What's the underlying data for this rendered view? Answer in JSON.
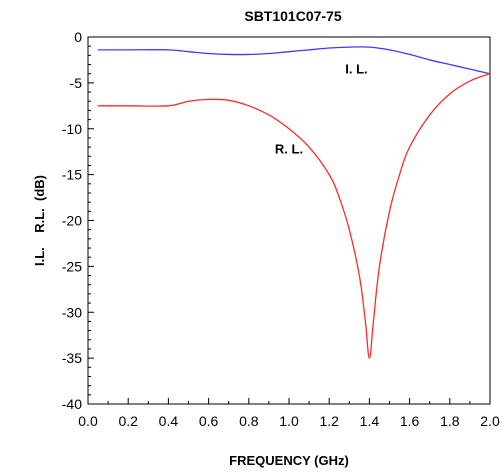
{
  "chart_data": {
    "type": "line",
    "title": "SBT101C07-75",
    "xlabel": "FREQUENCY (GHz)",
    "ylabel": "I.L.    R.L.  (dB)",
    "xlim": [
      0.0,
      2.0
    ],
    "ylim": [
      -40,
      0
    ],
    "x_ticks": [
      "0.0",
      "0.2",
      "0.4",
      "0.6",
      "0.8",
      "1.0",
      "1.2",
      "1.4",
      "1.6",
      "1.8",
      "2.0"
    ],
    "y_ticks": [
      "0",
      "-5",
      "-10",
      "-15",
      "-20",
      "-25",
      "-30",
      "-35",
      "-40"
    ],
    "grid": false,
    "annotations": [
      {
        "text": "I. L.",
        "x": 1.28,
        "y": -4.0
      },
      {
        "text": "R. L.",
        "x": 0.93,
        "y": -12.7
      }
    ],
    "series": [
      {
        "name": "I. L.",
        "color": "#3b3bff",
        "x": [
          0.05,
          0.2,
          0.4,
          0.5,
          0.6,
          0.7,
          0.8,
          0.9,
          1.0,
          1.1,
          1.2,
          1.3,
          1.4,
          1.5,
          1.6,
          1.7,
          1.8,
          1.9,
          2.0
        ],
        "y": [
          -1.4,
          -1.4,
          -1.4,
          -1.6,
          -1.8,
          -1.9,
          -1.9,
          -1.8,
          -1.6,
          -1.4,
          -1.2,
          -1.1,
          -1.1,
          -1.4,
          -1.9,
          -2.5,
          -3.0,
          -3.5,
          -4.0
        ]
      },
      {
        "name": "R. L.",
        "color": "#ff2a2a",
        "x": [
          0.05,
          0.2,
          0.4,
          0.5,
          0.6,
          0.7,
          0.8,
          0.9,
          1.0,
          1.1,
          1.2,
          1.25,
          1.3,
          1.35,
          1.38,
          1.4,
          1.42,
          1.45,
          1.5,
          1.55,
          1.6,
          1.7,
          1.8,
          1.9,
          2.0
        ],
        "y": [
          -7.5,
          -7.5,
          -7.5,
          -7.0,
          -6.8,
          -6.9,
          -7.5,
          -8.5,
          -10.0,
          -12.0,
          -15.0,
          -17.5,
          -21.0,
          -26.0,
          -31.0,
          -35.0,
          -31.0,
          -25.0,
          -19.0,
          -15.0,
          -12.0,
          -8.5,
          -6.2,
          -4.8,
          -4.0
        ]
      }
    ]
  }
}
